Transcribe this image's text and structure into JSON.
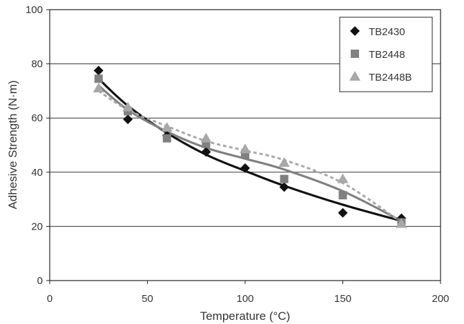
{
  "chart_data": {
    "type": "scatter",
    "title": "",
    "xlabel": "Temperature (°C)",
    "ylabel": "Adhesive Strength (N·m)",
    "xlim": [
      0,
      200
    ],
    "ylim": [
      0,
      100
    ],
    "xticks": [
      "0",
      "50",
      "100",
      "150",
      "200"
    ],
    "yticks": [
      "0",
      "20",
      "40",
      "60",
      "80",
      "100"
    ],
    "grid": "horizontal",
    "legend_position": "top-right",
    "series": [
      {
        "name": "TB2430",
        "marker": "diamond",
        "color": "#111111",
        "trend_style": "solid",
        "x": [
          25,
          40,
          60,
          80,
          100,
          120,
          150,
          180
        ],
        "y": [
          77.5,
          59.5,
          53.5,
          47.5,
          41.5,
          34.5,
          25,
          23
        ],
        "trend": [
          [
            25,
            74.5
          ],
          [
            40,
            64.5
          ],
          [
            60,
            54.5
          ],
          [
            80,
            46.5
          ],
          [
            100,
            40.5
          ],
          [
            120,
            35
          ],
          [
            150,
            28
          ],
          [
            180,
            22
          ]
        ]
      },
      {
        "name": "TB2448",
        "marker": "square",
        "color": "#808080",
        "trend_style": "solid",
        "x": [
          25,
          40,
          60,
          80,
          100,
          120,
          150,
          180
        ],
        "y": [
          74.5,
          62.5,
          52.5,
          50.5,
          46.5,
          37.5,
          31.5,
          21.5
        ],
        "trend": [
          [
            25,
            72
          ],
          [
            40,
            63
          ],
          [
            60,
            55
          ],
          [
            80,
            49
          ],
          [
            100,
            45
          ],
          [
            120,
            41
          ],
          [
            150,
            33
          ],
          [
            180,
            22
          ]
        ]
      },
      {
        "name": "TB2448B",
        "marker": "triangle",
        "color": "#a8a8a8",
        "trend_style": "dashed",
        "x": [
          25,
          40,
          60,
          80,
          100,
          120,
          150,
          180
        ],
        "y": [
          71,
          64,
          56.5,
          52.5,
          48.5,
          43.5,
          37.5,
          21
        ],
        "trend": [
          [
            25,
            70
          ],
          [
            40,
            63
          ],
          [
            60,
            57
          ],
          [
            80,
            51.5
          ],
          [
            100,
            48
          ],
          [
            120,
            44.5
          ],
          [
            150,
            36
          ],
          [
            180,
            21.5
          ]
        ]
      }
    ]
  }
}
